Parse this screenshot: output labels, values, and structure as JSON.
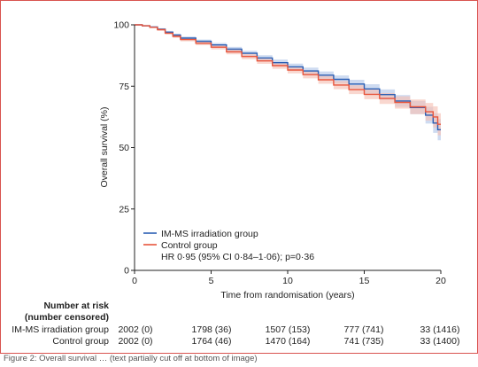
{
  "chart_data": {
    "type": "line",
    "title": "",
    "xlabel": "Time from randomisation (years)",
    "ylabel": "Overall survival (%)",
    "xlim": [
      0,
      20
    ],
    "ylim": [
      0,
      100
    ],
    "xticks": [
      "0",
      "5",
      "10",
      "15",
      "20"
    ],
    "yticks": [
      "0",
      "25",
      "50",
      "75",
      "100"
    ],
    "grid": false,
    "legend": "bottom-left",
    "series": [
      {
        "name": "IM-MS irradiation group",
        "color": "#2b5fb4",
        "band_color": "#b3c7ea",
        "x": [
          0,
          0.5,
          1,
          1.5,
          2,
          2.5,
          3,
          4,
          5,
          6,
          7,
          8,
          9,
          10,
          11,
          12,
          13,
          14,
          15,
          16,
          17,
          18,
          19,
          19.5,
          19.8,
          20
        ],
        "y": [
          100,
          99.6,
          99.1,
          98.2,
          97.0,
          95.8,
          94.6,
          93.3,
          91.8,
          90.1,
          88.4,
          86.5,
          84.6,
          82.9,
          81.2,
          79.5,
          77.8,
          75.9,
          73.9,
          71.6,
          69.0,
          66.3,
          63.2,
          60.0,
          57.3,
          57.3
        ],
        "ci_lower": [
          100,
          99.4,
          98.8,
          97.8,
          96.5,
          95.2,
          94.0,
          92.6,
          91.0,
          89.2,
          87.4,
          85.4,
          83.4,
          81.6,
          79.8,
          78.0,
          76.2,
          74.2,
          72.0,
          69.5,
          66.6,
          63.6,
          59.8,
          56.0,
          53.0,
          53.0
        ],
        "ci_upper": [
          100,
          99.8,
          99.4,
          98.6,
          97.5,
          96.4,
          95.2,
          94.0,
          92.6,
          91.0,
          89.4,
          87.6,
          85.8,
          84.2,
          82.6,
          81.0,
          79.4,
          77.6,
          75.8,
          73.7,
          71.4,
          69.0,
          66.6,
          64.0,
          61.6,
          61.6
        ]
      },
      {
        "name": "Control group",
        "color": "#e8553c",
        "band_color": "#f6c2b6",
        "x": [
          0,
          0.5,
          1,
          1.5,
          2,
          2.5,
          3,
          4,
          5,
          6,
          7,
          8,
          9,
          10,
          11,
          12,
          13,
          14,
          15,
          16,
          17,
          18,
          19,
          19.5,
          19.8,
          20
        ],
        "y": [
          100,
          99.6,
          99.0,
          98.0,
          96.6,
          95.3,
          94.0,
          92.5,
          90.9,
          89.0,
          87.1,
          85.3,
          83.4,
          81.6,
          79.7,
          77.6,
          75.5,
          73.6,
          71.7,
          70.0,
          68.4,
          66.6,
          64.6,
          62.5,
          59.5,
          59.5
        ],
        "ci_lower": [
          100,
          99.4,
          98.7,
          97.6,
          96.1,
          94.7,
          93.3,
          91.7,
          90.0,
          88.0,
          86.0,
          84.1,
          82.1,
          80.2,
          78.2,
          76.0,
          73.8,
          71.8,
          69.7,
          67.8,
          65.9,
          63.6,
          61.0,
          58.2,
          55.0,
          55.0
        ],
        "ci_upper": [
          100,
          99.8,
          99.3,
          98.4,
          97.1,
          95.9,
          94.7,
          93.3,
          91.8,
          90.0,
          88.2,
          86.5,
          84.7,
          83.0,
          81.2,
          79.2,
          77.2,
          75.4,
          73.7,
          72.2,
          70.9,
          69.6,
          68.2,
          66.8,
          64.0,
          64.0
        ]
      }
    ],
    "annotation": "HR 0·95 (95% CI 0·84–1·06); p=0·36",
    "risk_table": {
      "header_line1": "Number at risk",
      "header_line2": "(number censored)",
      "rows": [
        {
          "label": "IM-MS irradiation group",
          "values": [
            "2002 (0)",
            "1798 (36)",
            "1507 (153)",
            "777 (741)",
            "33 (1416)"
          ]
        },
        {
          "label": "Control group",
          "values": [
            "2002 (0)",
            "1764 (46)",
            "1470 (164)",
            "741 (735)",
            "33 (1400)"
          ]
        }
      ]
    }
  },
  "caption": "Figure 2: Overall survival … (text partially cut off at bottom of image)",
  "colors": {
    "border": "#d9534f"
  }
}
